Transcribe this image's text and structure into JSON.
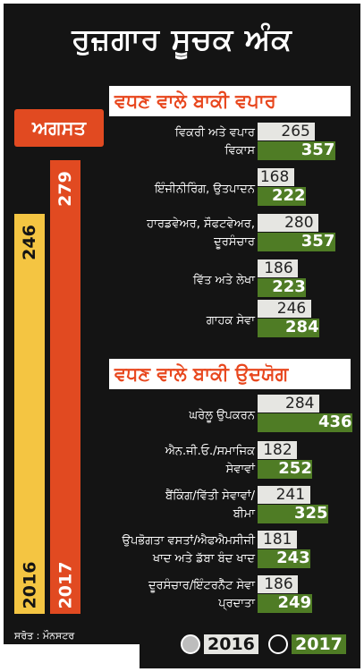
{
  "title": "ਰੁਜ਼ਗਾਰ ਸੂਚਕ ਅੰਕ",
  "month": "ਅਗਸਤ",
  "source": "ਸਰੋਤ : ਮੌਨਸਟਰ",
  "colors": {
    "y2016": "#f4c542",
    "y2017": "#e14a21",
    "bar2016": "#e6e6e2",
    "bar2017": "#4f7c25",
    "heading": "#e8471e"
  },
  "chart_data": [
    {
      "type": "bar",
      "categories": [
        "2016",
        "2017"
      ],
      "values": [
        246,
        279
      ]
    },
    {
      "type": "bar",
      "title": "ਵਧਣ ਵਾਲੇ ਬਾਕੀ ਵਪਾਰ",
      "categories": [
        [
          "ਵਿਕਰੀ ਅਤੇ ਵਪਾਰ",
          "ਵਿਕਾਸ"
        ],
        [
          "ਇੰਜੀਨੀਰਿੰਗ, ਉਤਪਾਦਨ"
        ],
        [
          "ਹਾਰਡਵੇਅਰ, ਸੌਫਟਵੇਅਰ,",
          "ਦੂਰਸੰਚਾਰ"
        ],
        [
          "ਵਿੱਤ ਅਤੇ ਲੇਖਾ"
        ],
        [
          "ਗਾਹਕ ਸੇਵਾ"
        ]
      ],
      "series": [
        {
          "name": "2016",
          "values": [
            265,
            168,
            280,
            186,
            246
          ]
        },
        {
          "name": "2017",
          "values": [
            357,
            222,
            357,
            223,
            284
          ]
        }
      ]
    },
    {
      "type": "bar",
      "title": "ਵਧਣ ਵਾਲੇ ਬਾਕੀ ਉਦਯੋਗ",
      "categories": [
        [
          "ਘਰੇਲੂ ਉਪਕਰਨ"
        ],
        [
          "ਐਨ.ਜੀ.ਓ./ਸਮਾਜਿਕ",
          "ਸੇਵਾਵਾਂ"
        ],
        [
          "ਬੈਂਕਿੰਗ/ਵਿੱਤੀ ਸੇਵਾਵਾਂ/",
          "ਬੀਮਾ"
        ],
        [
          "ਉਪਭੋਗਤਾ ਵਸਤਾਂ/ਐਫਐਮਸੀਜੀ",
          "ਖਾਦ ਅਤੇ ਡੱਬਾ ਬੰਦ ਖਾਦ"
        ],
        [
          "ਦੂਰਸੰਚਾਰ/ਇੰਟਰਨੈੱਟ ਸੇਵਾ",
          "ਪ੍ਰਦਾਤਾ"
        ]
      ],
      "series": [
        {
          "name": "2016",
          "values": [
            284,
            182,
            241,
            181,
            186
          ]
        },
        {
          "name": "2017",
          "values": [
            436,
            252,
            325,
            243,
            249
          ]
        }
      ]
    }
  ]
}
